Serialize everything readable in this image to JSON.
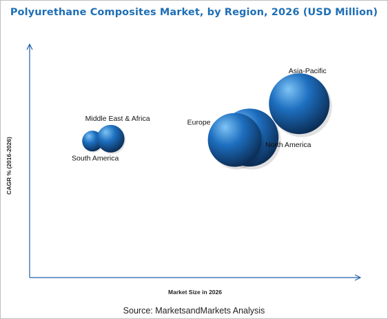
{
  "chart_data": {
    "type": "bubble",
    "title": "Polyurethane Composites Market, by Region, 2026 (USD Million)",
    "xlabel": "Market Size in 2026",
    "ylabel": "CAGR % (2016-2026)",
    "x_tick_labels": false,
    "y_tick_labels": false,
    "grid": false,
    "series": [
      {
        "name": "Asia-Pacific",
        "x": 0.815,
        "y": 0.745,
        "size": 44
      },
      {
        "name": "North America",
        "x": 0.665,
        "y": 0.6,
        "size": 42
      },
      {
        "name": "Europe",
        "x": 0.62,
        "y": 0.59,
        "size": 39
      },
      {
        "name": "Middle East & Africa",
        "x": 0.245,
        "y": 0.595,
        "size": 20
      },
      {
        "name": "South America",
        "x": 0.19,
        "y": 0.585,
        "size": 15
      }
    ],
    "colors": {
      "bubble_highlight": "#7fc4f5",
      "bubble_mid": "#1e6fc0",
      "bubble_dark": "#0b2d55",
      "axis": "#1f5fa8",
      "title": "#1f6fb5"
    }
  },
  "source": "Source:  MarketsandMarkets Analysis"
}
